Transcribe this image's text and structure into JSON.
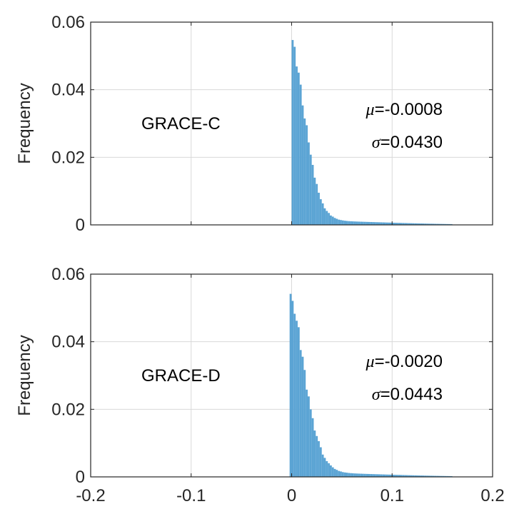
{
  "chart_data": [
    {
      "type": "bar",
      "label": "GRACE-C",
      "ylabel": "Frequency",
      "xlim": [
        -0.2,
        0.2
      ],
      "ylim": [
        0,
        0.06
      ],
      "xticks": [
        "-0.2",
        "-0.1",
        "0",
        "0.1",
        "0.2"
      ],
      "yticks": [
        "0",
        "0.02",
        "0.04",
        "0.06"
      ],
      "xtick_values": [
        -0.2,
        -0.1,
        0,
        0.1,
        0.2
      ],
      "ytick_values": [
        0,
        0.02,
        0.04,
        0.06
      ],
      "grid": true,
      "mu_symbol": "μ",
      "mu_value": "=-0.0008",
      "sigma_symbol": "σ",
      "sigma_value": "=0.0430",
      "bar_color": "#5BA4D4",
      "peak": 0.053,
      "sigma_left": 0.0115,
      "sigma_right": 0.0125,
      "peak_position": 0.0
    },
    {
      "type": "bar",
      "label": "GRACE-D",
      "ylabel": "Frequency",
      "xlim": [
        -0.2,
        0.2
      ],
      "ylim": [
        0,
        0.06
      ],
      "xticks": [
        "-0.2",
        "-0.1",
        "0",
        "0.1",
        "0.2"
      ],
      "yticks": [
        "0",
        "0.02",
        "0.04",
        "0.06"
      ],
      "xtick_values": [
        -0.2,
        -0.1,
        0,
        0.1,
        0.2
      ],
      "ytick_values": [
        0,
        0.02,
        0.04,
        0.06
      ],
      "grid": true,
      "mu_symbol": "μ",
      "mu_value": "=-0.0020",
      "sigma_symbol": "σ",
      "sigma_value": "=0.0443",
      "bar_color": "#5BA4D4",
      "peak": 0.05,
      "sigma_left": 0.0115,
      "sigma_right": 0.0135,
      "peak_position": -0.001
    }
  ]
}
